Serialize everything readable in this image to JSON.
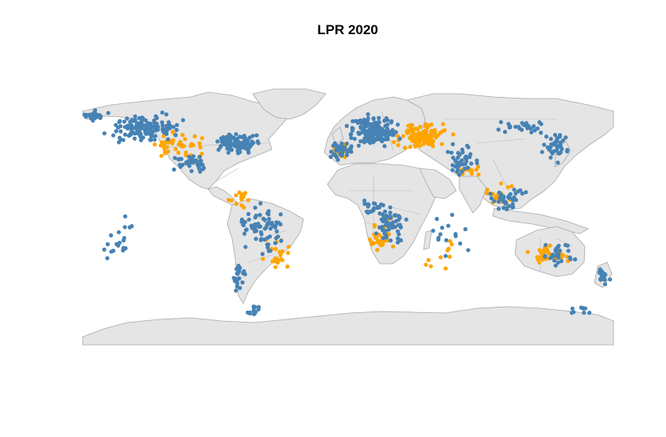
{
  "title": "LPR 2020",
  "colors": {
    "land": "#e5e5e5",
    "land_border": "#a8a8a8",
    "blue_points": "#4682b4",
    "orange_points": "#ffa500"
  }
}
